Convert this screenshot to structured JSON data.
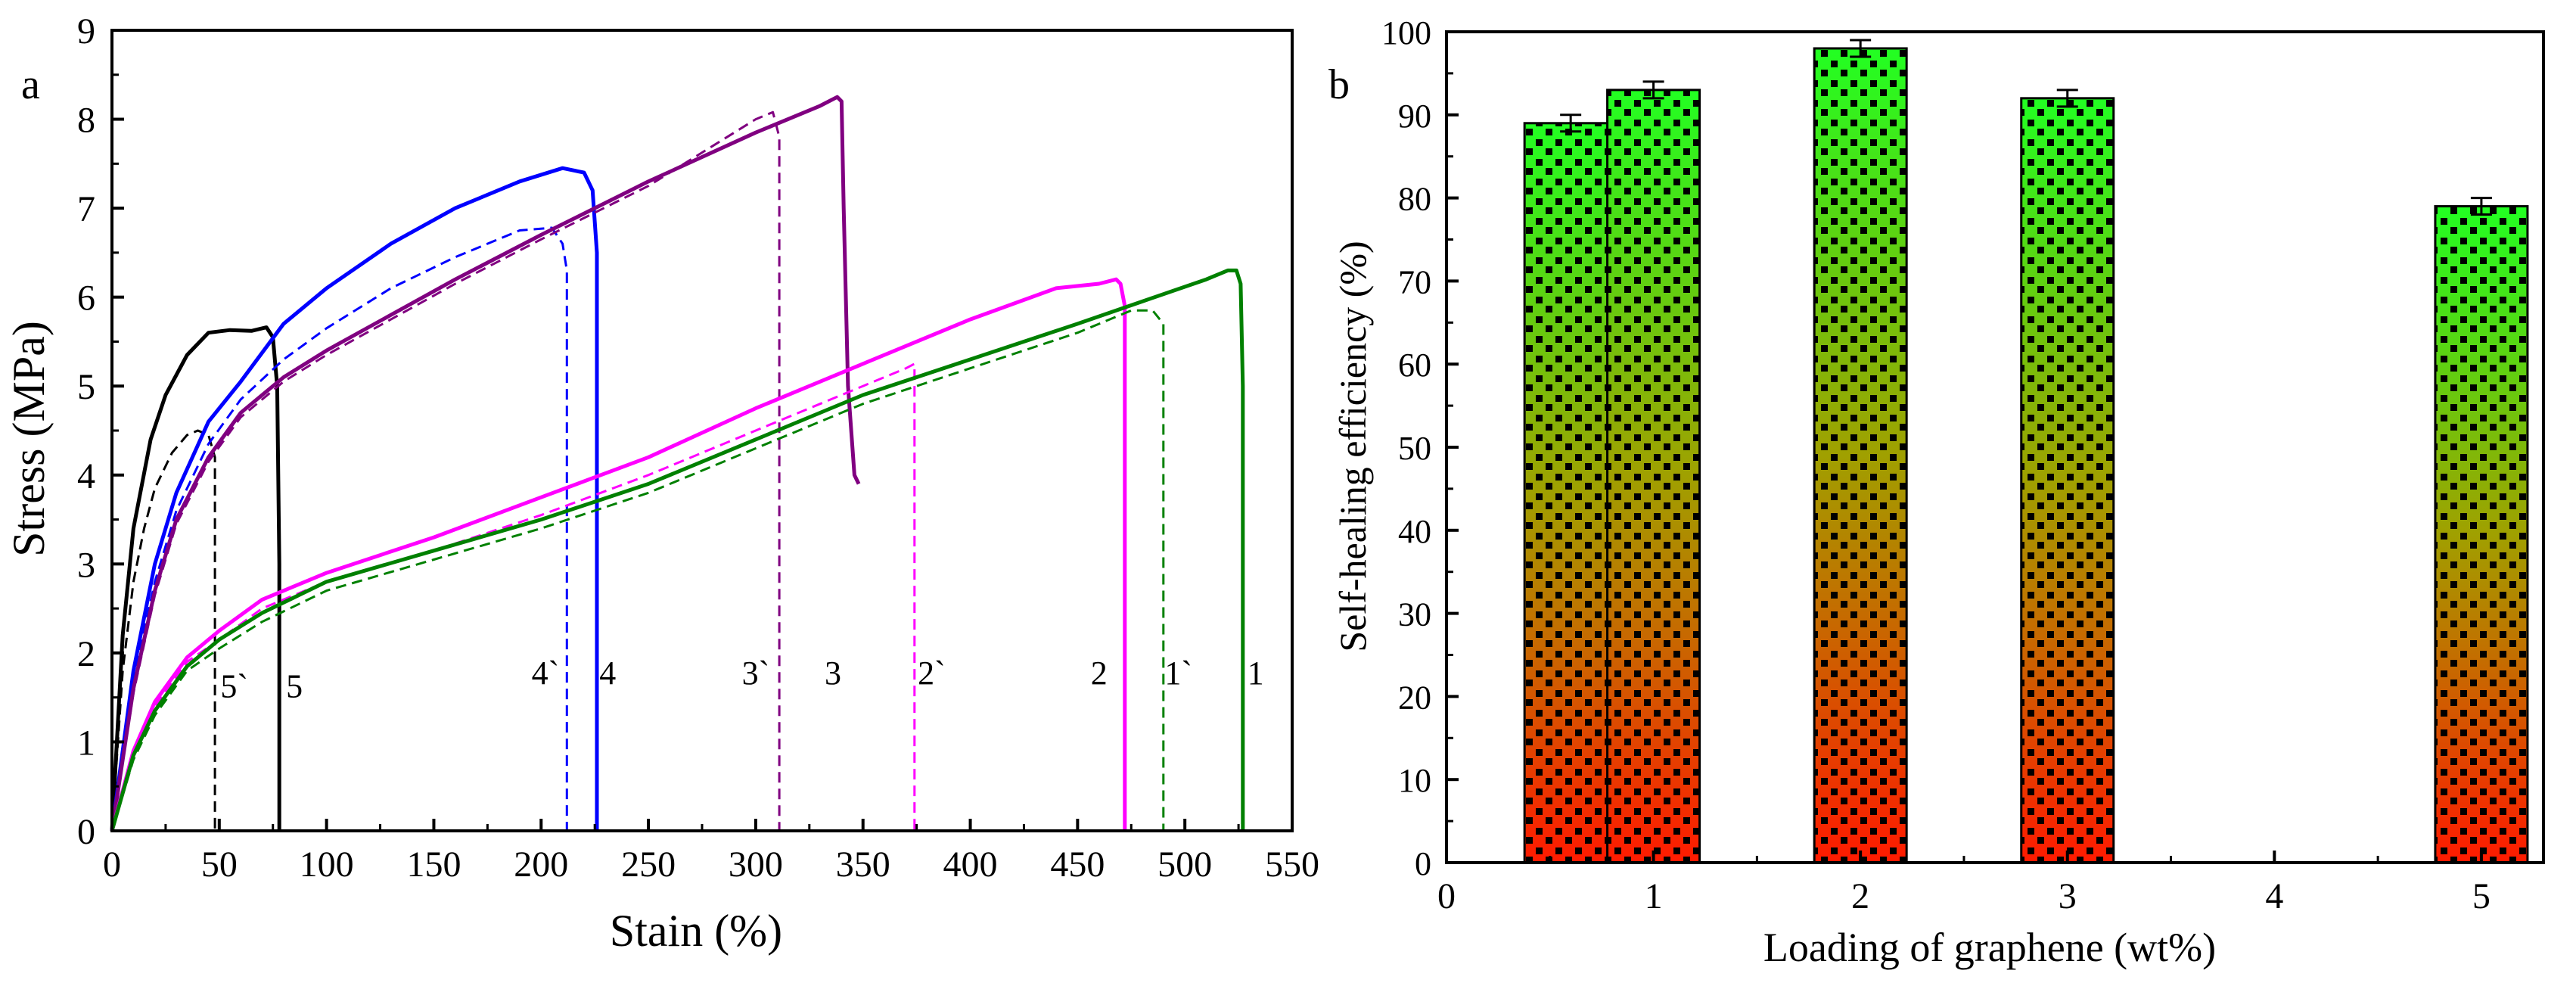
{
  "chart_data": [
    {
      "panel_label": "a",
      "type": "line",
      "xlabel": "Stain (%)",
      "ylabel": "Stress (MPa)",
      "xlim": [
        0,
        550
      ],
      "ylim": [
        0,
        9
      ],
      "xticks": [
        0,
        50,
        100,
        150,
        200,
        250,
        300,
        350,
        400,
        450,
        500,
        550
      ],
      "yticks": [
        0,
        1,
        2,
        3,
        4,
        5,
        6,
        7,
        8,
        9
      ],
      "series": [
        {
          "name": "5",
          "color": "#000000",
          "style": "solid",
          "label": "5",
          "label_at": [
            85,
            1.5
          ],
          "x": [
            0,
            5,
            10,
            18,
            25,
            35,
            45,
            55,
            65,
            72,
            75,
            77,
            78,
            78,
            78
          ],
          "y": [
            0,
            2.2,
            3.4,
            4.4,
            4.9,
            5.35,
            5.6,
            5.63,
            5.62,
            5.66,
            5.55,
            5.0,
            3.0,
            1.0,
            0
          ]
        },
        {
          "name": "5`",
          "color": "#000000",
          "style": "dashed",
          "label": "5`",
          "label_at": [
            57,
            1.5
          ],
          "x": [
            0,
            5,
            10,
            15,
            20,
            28,
            35,
            40,
            45,
            48,
            48
          ],
          "y": [
            0,
            1.8,
            2.8,
            3.4,
            3.85,
            4.25,
            4.45,
            4.5,
            4.45,
            4.2,
            0
          ]
        },
        {
          "name": "4",
          "color": "#0000ff",
          "style": "solid",
          "label": "4",
          "label_at": [
            231,
            1.65
          ],
          "x": [
            0,
            10,
            20,
            30,
            45,
            60,
            80,
            100,
            130,
            160,
            190,
            210,
            220,
            224,
            226,
            226
          ],
          "y": [
            0,
            1.8,
            3.0,
            3.8,
            4.6,
            5.05,
            5.7,
            6.1,
            6.6,
            7.0,
            7.3,
            7.45,
            7.4,
            7.2,
            6.5,
            0
          ]
        },
        {
          "name": "4`",
          "color": "#0000ff",
          "style": "dashed",
          "label": "4`",
          "label_at": [
            202,
            1.65
          ],
          "x": [
            0,
            10,
            20,
            30,
            45,
            60,
            80,
            100,
            130,
            160,
            190,
            205,
            210,
            212,
            212
          ],
          "y": [
            0,
            1.7,
            2.8,
            3.6,
            4.35,
            4.85,
            5.3,
            5.65,
            6.1,
            6.45,
            6.75,
            6.78,
            6.6,
            6.3,
            0
          ]
        },
        {
          "name": "3",
          "color": "#800080",
          "style": "solid",
          "label": "3",
          "label_at": [
            336,
            1.65
          ],
          "x": [
            0,
            10,
            20,
            30,
            45,
            60,
            80,
            100,
            130,
            160,
            200,
            250,
            300,
            330,
            338,
            340,
            341,
            343,
            346,
            348
          ],
          "y": [
            0,
            1.6,
            2.7,
            3.5,
            4.2,
            4.7,
            5.1,
            5.4,
            5.8,
            6.2,
            6.7,
            7.3,
            7.85,
            8.15,
            8.25,
            8.2,
            7.0,
            5.0,
            4.0,
            3.9
          ]
        },
        {
          "name": "3`",
          "color": "#800080",
          "style": "dashed",
          "label": "3`",
          "label_at": [
            300,
            1.65
          ],
          "x": [
            0,
            10,
            20,
            30,
            45,
            60,
            80,
            100,
            130,
            160,
            200,
            250,
            280,
            300,
            308,
            311,
            311
          ],
          "y": [
            0,
            1.55,
            2.65,
            3.45,
            4.15,
            4.65,
            5.05,
            5.35,
            5.75,
            6.15,
            6.65,
            7.25,
            7.7,
            8.0,
            8.08,
            7.8,
            0
          ]
        },
        {
          "name": "2",
          "color": "#ff00ff",
          "style": "solid",
          "label": "2",
          "label_at": [
            460,
            1.65
          ],
          "x": [
            0,
            10,
            20,
            35,
            50,
            70,
            100,
            150,
            200,
            250,
            300,
            350,
            400,
            440,
            460,
            468,
            470,
            472,
            472
          ],
          "y": [
            0,
            0.9,
            1.45,
            1.95,
            2.25,
            2.6,
            2.9,
            3.3,
            3.75,
            4.2,
            4.75,
            5.25,
            5.75,
            6.1,
            6.15,
            6.2,
            6.15,
            5.9,
            0
          ]
        },
        {
          "name": "2`",
          "color": "#ff00ff",
          "style": "dashed",
          "label": "2`",
          "label_at": [
            382,
            1.65
          ],
          "x": [
            0,
            10,
            20,
            35,
            50,
            70,
            100,
            150,
            200,
            250,
            300,
            350,
            370,
            374,
            374
          ],
          "y": [
            0,
            0.85,
            1.4,
            1.9,
            2.15,
            2.5,
            2.8,
            3.15,
            3.55,
            4.0,
            4.5,
            5.0,
            5.2,
            5.25,
            0
          ]
        },
        {
          "name": "1",
          "color": "#008000",
          "style": "solid",
          "label": "1",
          "label_at": [
            533,
            1.65
          ],
          "x": [
            0,
            10,
            20,
            35,
            50,
            70,
            100,
            150,
            200,
            250,
            300,
            350,
            400,
            450,
            480,
            510,
            520,
            524,
            526,
            527,
            527
          ],
          "y": [
            0,
            0.85,
            1.35,
            1.85,
            2.15,
            2.45,
            2.8,
            3.15,
            3.5,
            3.9,
            4.4,
            4.9,
            5.3,
            5.7,
            5.95,
            6.2,
            6.3,
            6.3,
            6.15,
            5.0,
            0
          ]
        },
        {
          "name": "1`",
          "color": "#008000",
          "style": "dashed",
          "label": "1`",
          "label_at": [
            497,
            1.65
          ],
          "x": [
            0,
            10,
            20,
            35,
            50,
            70,
            100,
            150,
            200,
            250,
            300,
            350,
            400,
            450,
            475,
            485,
            490,
            490
          ],
          "y": [
            0,
            0.8,
            1.3,
            1.8,
            2.05,
            2.35,
            2.7,
            3.05,
            3.4,
            3.8,
            4.3,
            4.8,
            5.2,
            5.6,
            5.85,
            5.85,
            5.7,
            0
          ]
        }
      ]
    },
    {
      "panel_label": "b",
      "type": "bar",
      "xlabel": "Loading of graphene  (wt%)",
      "ylabel": "Self-healing efficiency (%)",
      "xlim": [
        0,
        5.3
      ],
      "ylim": [
        0,
        100
      ],
      "xticks": [
        0,
        1,
        2,
        3,
        4,
        5
      ],
      "yticks": [
        0,
        10,
        20,
        30,
        40,
        50,
        60,
        70,
        80,
        90,
        100
      ],
      "bar_fill": "gradient green (top) to red (bottom) with black square pattern",
      "bar_colors": {
        "top": "#22ff22",
        "bottom": "#ff1a00"
      },
      "bars": [
        {
          "x": 0.6,
          "value": 89,
          "error": 1.0
        },
        {
          "x": 1.0,
          "value": 93,
          "error": 1.0
        },
        {
          "x": 2.0,
          "value": 98,
          "error": 1.0
        },
        {
          "x": 3.0,
          "value": 92,
          "error": 1.0
        },
        {
          "x": 5.0,
          "value": 79,
          "error": 1.0
        }
      ]
    }
  ]
}
